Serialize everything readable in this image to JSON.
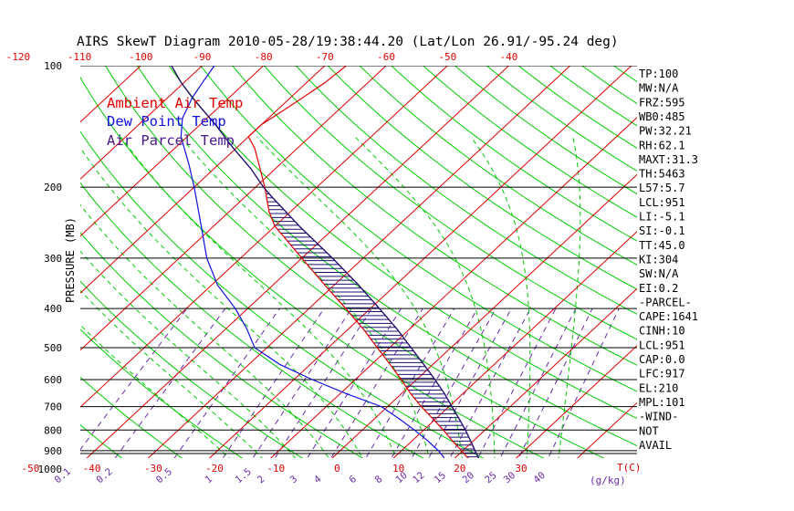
{
  "title": "AIRS SkewT Diagram 2010-05-28/19:38:44.20 (Lat/Lon 26.91/-95.24 deg)",
  "legend": [
    {
      "label": "Ambient Air Temp",
      "color": "#e00000"
    },
    {
      "label": "Dew Point Temp",
      "color": "#1010e0"
    },
    {
      "label": "Air Parcel Temp",
      "color": "#4a1a8c"
    }
  ],
  "y_axis_label": "PRESSURE (MB)",
  "colors": {
    "isotherm": "#e00000",
    "dry_adiabat": "#00cc00",
    "moist_adiabat": "#00cc00",
    "mixing_ratio": "#6a2aa8",
    "isobar": "#000000",
    "ambient": "#e00000",
    "dewpoint": "#1010e0",
    "parcel": "#2a1070",
    "hatch": "#1a1070",
    "axis_text": "#000000",
    "top_text": "#e00000",
    "bottom_text": "#e00000",
    "mixing_text": "#6a2aa8"
  },
  "indices": [
    "TP:100",
    "MW:N/A",
    "FRZ:595",
    "WB0:485",
    "PW:32.21",
    "RH:62.1",
    "MAXT:31.3",
    "TH:5463",
    "L57:5.7",
    "LCL:951",
    "LI:-5.1",
    "SI:-0.1",
    "TT:45.0",
    "KI:304",
    "SW:N/A",
    "EI:0.2",
    "-PARCEL-",
    "CAPE:1641",
    "CINH:10",
    "LCL:951",
    "CAP:0.0",
    "LFC:917",
    "EL:210",
    "MPL:101",
    "-WIND-",
    "NOT",
    "AVAIL"
  ],
  "chart_data": {
    "type": "line",
    "title": "AIRS SkewT Diagram 2010-05-28/19:38:44.20 (Lat/Lon 26.91/-95.24 deg)",
    "ylabel": "PRESSURE (MB)",
    "pressure_levels": [
      100,
      200,
      300,
      400,
      500,
      600,
      700,
      800,
      900,
      1000
    ],
    "pressure_labels": [
      "100",
      "200",
      "300",
      "400",
      "500",
      "600",
      "700",
      "800",
      "900",
      "1000"
    ],
    "top_temp_ticks": [
      -120,
      -110,
      -100,
      -90,
      -80,
      -70,
      -60,
      -50,
      -40
    ],
    "top_temp_labels": [
      "-120",
      "-110",
      "-100",
      "-90",
      "-80",
      "-70",
      "-60",
      "-50",
      "-40"
    ],
    "bottom_temp_ticks": [
      -50,
      -40,
      -30,
      -20,
      -10,
      0,
      10,
      20,
      30
    ],
    "bottom_temp_labels": [
      "-50",
      "-40",
      "-30",
      "-20",
      "-10",
      "0",
      "10",
      "20",
      "30"
    ],
    "bottom_unit_label": "T(C)",
    "mixing_ratio_values": [
      0.1,
      0.2,
      0.5,
      1,
      1.5,
      2,
      3,
      4,
      6,
      8,
      10,
      12,
      15,
      20,
      25,
      30,
      40
    ],
    "mixing_ratio_labels": [
      "0.1",
      "0.2",
      "0.5",
      "1",
      "1.5",
      "2",
      "3",
      "4",
      "6",
      "8",
      "10",
      "12",
      "15",
      "20",
      "25",
      "30",
      "40"
    ],
    "mixing_ratio_unit": "(g/kg)",
    "ylim": [
      100,
      1030
    ],
    "series": [
      {
        "name": "Ambient Air Temp",
        "points": [
          {
            "p": 1030,
            "t": 32.0
          },
          {
            "p": 1000,
            "t": 27.5
          },
          {
            "p": 975,
            "t": 24.5
          },
          {
            "p": 950,
            "t": 22.8
          },
          {
            "p": 925,
            "t": 21.3
          },
          {
            "p": 900,
            "t": 19.8
          },
          {
            "p": 850,
            "t": 16.5
          },
          {
            "p": 800,
            "t": 13.2
          },
          {
            "p": 750,
            "t": 9.5
          },
          {
            "p": 700,
            "t": 5.5
          },
          {
            "p": 650,
            "t": 1.5
          },
          {
            "p": 600,
            "t": -2.5
          },
          {
            "p": 550,
            "t": -7.0
          },
          {
            "p": 500,
            "t": -12.0
          },
          {
            "p": 450,
            "t": -17.5
          },
          {
            "p": 400,
            "t": -24.0
          },
          {
            "p": 350,
            "t": -31.5
          },
          {
            "p": 300,
            "t": -40.0
          },
          {
            "p": 250,
            "t": -50.0
          },
          {
            "p": 230,
            "t": -53.5
          },
          {
            "p": 200,
            "t": -58.5
          },
          {
            "p": 180,
            "t": -62.5
          },
          {
            "p": 160,
            "t": -67.0
          },
          {
            "p": 150,
            "t": -70.0
          },
          {
            "p": 140,
            "t": -70.0
          },
          {
            "p": 130,
            "t": -69.0
          },
          {
            "p": 120,
            "t": -68.0
          },
          {
            "p": 110,
            "t": -67.0
          },
          {
            "p": 100,
            "t": -66.5
          }
        ]
      },
      {
        "name": "Dew Point Temp",
        "points": [
          {
            "p": 1030,
            "t": 26.5
          },
          {
            "p": 1000,
            "t": 21.5
          },
          {
            "p": 975,
            "t": 20.0
          },
          {
            "p": 950,
            "t": 18.8
          },
          {
            "p": 925,
            "t": 17.5
          },
          {
            "p": 900,
            "t": 16.0
          },
          {
            "p": 850,
            "t": 12.5
          },
          {
            "p": 800,
            "t": 8.5
          },
          {
            "p": 750,
            "t": 4.0
          },
          {
            "p": 700,
            "t": -1.0
          },
          {
            "p": 650,
            "t": -9.0
          },
          {
            "p": 600,
            "t": -17.0
          },
          {
            "p": 550,
            "t": -25.0
          },
          {
            "p": 500,
            "t": -32.0
          },
          {
            "p": 450,
            "t": -36.5
          },
          {
            "p": 400,
            "t": -42.0
          },
          {
            "p": 350,
            "t": -49.0
          },
          {
            "p": 300,
            "t": -55.5
          },
          {
            "p": 250,
            "t": -62.0
          },
          {
            "p": 200,
            "t": -70.0
          },
          {
            "p": 175,
            "t": -75.0
          },
          {
            "p": 150,
            "t": -81.0
          },
          {
            "p": 135,
            "t": -84.0
          },
          {
            "p": 120,
            "t": -86.0
          },
          {
            "p": 110,
            "t": -87.0
          },
          {
            "p": 100,
            "t": -88.0
          }
        ]
      },
      {
        "name": "Air Parcel Temp",
        "points": [
          {
            "p": 1030,
            "t": 32.0
          },
          {
            "p": 1000,
            "t": 29.0
          },
          {
            "p": 975,
            "t": 26.8
          },
          {
            "p": 951,
            "t": 24.5
          },
          {
            "p": 925,
            "t": 23.2
          },
          {
            "p": 900,
            "t": 22.0
          },
          {
            "p": 850,
            "t": 19.5
          },
          {
            "p": 800,
            "t": 16.8
          },
          {
            "p": 750,
            "t": 13.8
          },
          {
            "p": 700,
            "t": 10.5
          },
          {
            "p": 650,
            "t": 7.0
          },
          {
            "p": 600,
            "t": 3.0
          },
          {
            "p": 550,
            "t": -1.5
          },
          {
            "p": 500,
            "t": -6.5
          },
          {
            "p": 450,
            "t": -12.0
          },
          {
            "p": 400,
            "t": -18.5
          },
          {
            "p": 350,
            "t": -26.0
          },
          {
            "p": 300,
            "t": -35.0
          },
          {
            "p": 250,
            "t": -46.0
          },
          {
            "p": 210,
            "t": -56.0
          },
          {
            "p": 200,
            "t": -58.7
          },
          {
            "p": 180,
            "t": -64.0
          },
          {
            "p": 160,
            "t": -70.5
          },
          {
            "p": 140,
            "t": -77.5
          },
          {
            "p": 120,
            "t": -86.0
          },
          {
            "p": 110,
            "t": -90.5
          },
          {
            "p": 100,
            "t": -95.0
          }
        ]
      }
    ]
  }
}
